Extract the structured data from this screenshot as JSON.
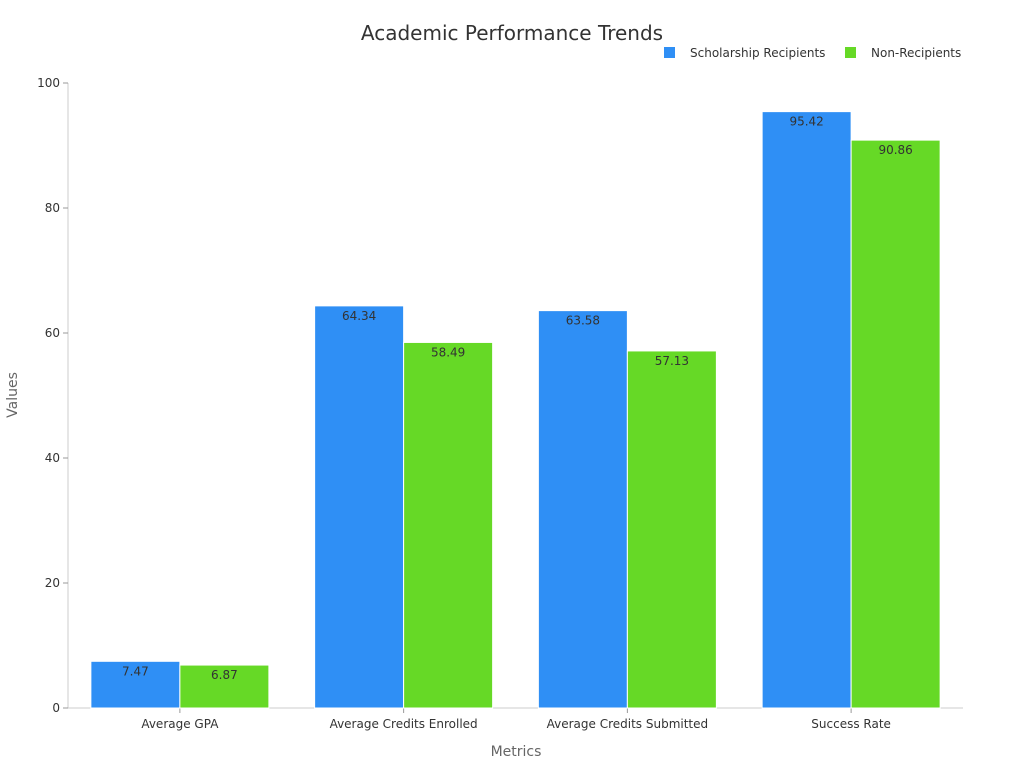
{
  "chart_data": {
    "type": "bar",
    "title": "Academic Performance Trends",
    "xlabel": "Metrics",
    "ylabel": "Values",
    "categories": [
      "Average GPA",
      "Average Credits Enrolled",
      "Average Credits Submitted",
      "Success Rate"
    ],
    "series": [
      {
        "name": "Scholarship Recipients",
        "color": "#2f8ff5",
        "values": [
          7.47,
          64.34,
          63.58,
          95.42
        ],
        "labels": [
          "7.47",
          "64.34",
          "63.58",
          "95.42"
        ]
      },
      {
        "name": "Non-Recipients",
        "color": "#66d926",
        "values": [
          6.87,
          58.49,
          57.13,
          90.86
        ],
        "labels": [
          "6.87",
          "58.49",
          "57.13",
          "90.86"
        ]
      }
    ],
    "ylim": [
      0,
      100
    ],
    "yticks": [
      0,
      20,
      40,
      60,
      80,
      100
    ],
    "ytick_labels": [
      "0",
      "20",
      "40",
      "60",
      "80",
      "100"
    ],
    "grid": false,
    "legend_position": "top-right"
  }
}
